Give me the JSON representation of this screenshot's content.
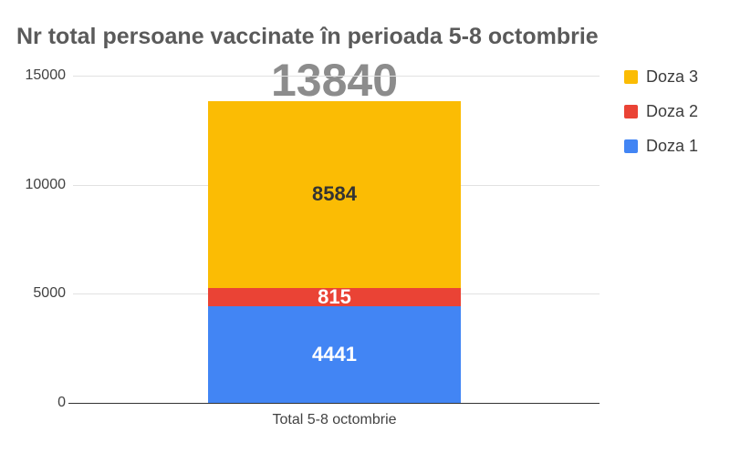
{
  "chart": {
    "title": "Nr total persoane vaccinate în perioada 5-8 octombrie",
    "total_label": "13840",
    "x_category": "Total 5-8 octombrie"
  },
  "chart_data": {
    "type": "bar",
    "stacked": true,
    "title": "Nr total persoane vaccinate în perioada 5-8 octombrie",
    "categories": [
      "Total 5-8 octombrie"
    ],
    "series": [
      {
        "name": "Doza 1",
        "values": [
          4441
        ],
        "color": "#4285F4",
        "label_color": "#ffffff"
      },
      {
        "name": "Doza 2",
        "values": [
          815
        ],
        "color": "#EA4335",
        "label_color": "#ffffff"
      },
      {
        "name": "Doza 3",
        "values": [
          8584
        ],
        "color": "#FBBC04",
        "label_color": "#333333"
      }
    ],
    "total": 13840,
    "xlabel": "",
    "ylabel": "",
    "ylim": [
      0,
      15000
    ],
    "yticks": [
      0,
      5000,
      10000,
      15000
    ],
    "grid": true,
    "legend_position": "right",
    "legend_order": [
      "Doza 3",
      "Doza 2",
      "Doza 1"
    ]
  },
  "colors": {
    "background": "#ffffff",
    "title_text": "#5a5a5a",
    "total_text": "#8c8c8c",
    "axis_text": "#424242",
    "gridline": "#e2e2e2",
    "baseline": "#333333",
    "legend_text": "#3c3c3c"
  }
}
